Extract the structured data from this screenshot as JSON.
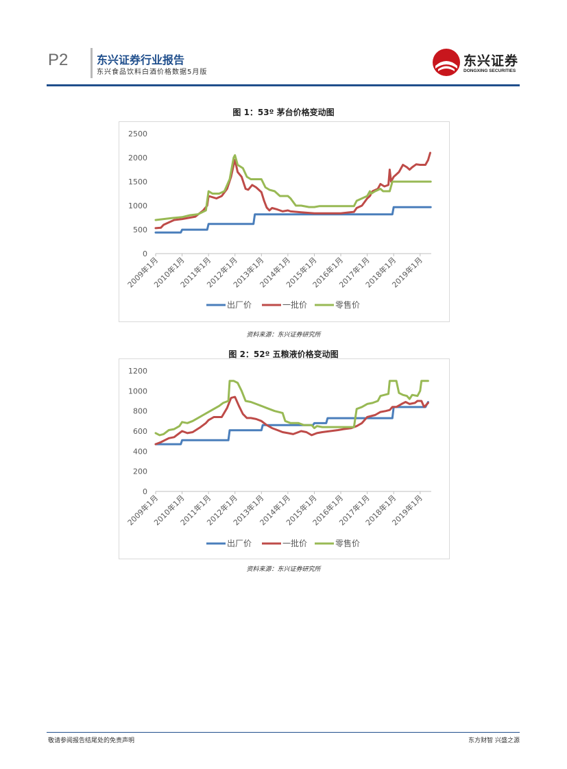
{
  "header": {
    "page_number": "P2",
    "title": "东兴证券行业报告",
    "subtitle": "东兴食品饮料白酒价格数据5月版",
    "logo_name": "东兴证券",
    "logo_en": "DONGXING SECURITIES"
  },
  "colors": {
    "brand_blue": "#1f4e8c",
    "logo_red": "#c8161d",
    "series_blue": "#4a7ebb",
    "series_red": "#be4b48",
    "series_green": "#98b954"
  },
  "figures": [
    {
      "title": "图 1：53º 茅台价格变动图",
      "source": "资料来源：东兴证券研究所"
    },
    {
      "title": "图 2：52º 五粮液价格变动图",
      "source": "资料来源：东兴证券研究所"
    }
  ],
  "chart_data": [
    {
      "type": "line",
      "title": "图 1：53º 茅台价格变动图",
      "xlabel": "",
      "ylabel": "",
      "ylim": [
        0,
        2500
      ],
      "yticks": [
        0,
        500,
        1000,
        1500,
        2000,
        2500
      ],
      "xlim": [
        2009.0,
        2019.42
      ],
      "xticks": [
        2009,
        2010,
        2011,
        2012,
        2013,
        2014,
        2015,
        2016,
        2017,
        2018,
        2019
      ],
      "xtick_labels": [
        "2009年1月",
        "2010年1月",
        "2011年1月",
        "2012年1月",
        "2013年1月",
        "2014年1月",
        "2015年1月",
        "2016年1月",
        "2017年1月",
        "2018年1月",
        "2019年1月"
      ],
      "legend_position": "bottom",
      "series": [
        {
          "name": "出厂价",
          "color": "#4a7ebb",
          "points": [
            [
              2009.0,
              439
            ],
            [
              2009.95,
              439
            ],
            [
              2010.0,
              499
            ],
            [
              2010.95,
              499
            ],
            [
              2011.0,
              619
            ],
            [
              2012.7,
              619
            ],
            [
              2012.75,
              819
            ],
            [
              2017.95,
              819
            ],
            [
              2018.0,
              969
            ],
            [
              2019.4,
              969
            ]
          ]
        },
        {
          "name": "一批价",
          "color": "#be4b48",
          "points": [
            [
              2009.0,
              530
            ],
            [
              2009.2,
              540
            ],
            [
              2009.3,
              600
            ],
            [
              2009.5,
              650
            ],
            [
              2009.7,
              700
            ],
            [
              2010.0,
              720
            ],
            [
              2010.3,
              750
            ],
            [
              2010.5,
              770
            ],
            [
              2010.8,
              900
            ],
            [
              2010.95,
              1000
            ],
            [
              2011.0,
              1200
            ],
            [
              2011.3,
              1150
            ],
            [
              2011.5,
              1200
            ],
            [
              2011.7,
              1350
            ],
            [
              2011.85,
              1600
            ],
            [
              2011.95,
              1850
            ],
            [
              2012.0,
              1950
            ],
            [
              2012.1,
              1700
            ],
            [
              2012.25,
              1600
            ],
            [
              2012.4,
              1350
            ],
            [
              2012.5,
              1330
            ],
            [
              2012.65,
              1430
            ],
            [
              2012.8,
              1380
            ],
            [
              2013.0,
              1280
            ],
            [
              2013.1,
              1100
            ],
            [
              2013.2,
              960
            ],
            [
              2013.3,
              900
            ],
            [
              2013.4,
              950
            ],
            [
              2013.6,
              920
            ],
            [
              2013.8,
              880
            ],
            [
              2014.0,
              900
            ],
            [
              2014.1,
              880
            ],
            [
              2014.5,
              860
            ],
            [
              2015.0,
              840
            ],
            [
              2015.5,
              840
            ],
            [
              2016.0,
              840
            ],
            [
              2016.5,
              870
            ],
            [
              2016.6,
              950
            ],
            [
              2016.8,
              1000
            ],
            [
              2017.0,
              1150
            ],
            [
              2017.1,
              1200
            ],
            [
              2017.2,
              1300
            ],
            [
              2017.4,
              1350
            ],
            [
              2017.5,
              1450
            ],
            [
              2017.65,
              1400
            ],
            [
              2017.8,
              1430
            ],
            [
              2017.85,
              1750
            ],
            [
              2017.9,
              1500
            ],
            [
              2018.0,
              1600
            ],
            [
              2018.1,
              1650
            ],
            [
              2018.2,
              1700
            ],
            [
              2018.35,
              1850
            ],
            [
              2018.5,
              1800
            ],
            [
              2018.6,
              1750
            ],
            [
              2018.7,
              1800
            ],
            [
              2018.85,
              1860
            ],
            [
              2019.0,
              1850
            ],
            [
              2019.2,
              1850
            ],
            [
              2019.3,
              1950
            ],
            [
              2019.38,
              2100
            ]
          ]
        },
        {
          "name": "零售价",
          "color": "#98b954",
          "points": [
            [
              2009.0,
              700
            ],
            [
              2009.3,
              720
            ],
            [
              2009.6,
              740
            ],
            [
              2010.0,
              760
            ],
            [
              2010.3,
              800
            ],
            [
              2010.6,
              820
            ],
            [
              2010.9,
              900
            ],
            [
              2011.0,
              1300
            ],
            [
              2011.15,
              1250
            ],
            [
              2011.4,
              1250
            ],
            [
              2011.6,
              1300
            ],
            [
              2011.8,
              1550
            ],
            [
              2011.95,
              2000
            ],
            [
              2012.0,
              2050
            ],
            [
              2012.1,
              1850
            ],
            [
              2012.3,
              1780
            ],
            [
              2012.45,
              1600
            ],
            [
              2012.6,
              1550
            ],
            [
              2013.0,
              1550
            ],
            [
              2013.15,
              1380
            ],
            [
              2013.3,
              1330
            ],
            [
              2013.5,
              1300
            ],
            [
              2013.7,
              1200
            ],
            [
              2014.0,
              1200
            ],
            [
              2014.1,
              1150
            ],
            [
              2014.3,
              1000
            ],
            [
              2014.5,
              1000
            ],
            [
              2014.8,
              970
            ],
            [
              2015.0,
              970
            ],
            [
              2015.2,
              990
            ],
            [
              2016.5,
              990
            ],
            [
              2016.6,
              1100
            ],
            [
              2016.8,
              1150
            ],
            [
              2017.0,
              1200
            ],
            [
              2017.1,
              1300
            ],
            [
              2017.15,
              1250
            ],
            [
              2017.3,
              1300
            ],
            [
              2017.5,
              1350
            ],
            [
              2017.6,
              1300
            ],
            [
              2017.85,
              1300
            ],
            [
              2017.95,
              1500
            ],
            [
              2019.4,
              1500
            ]
          ]
        }
      ]
    },
    {
      "type": "line",
      "title": "图 2：52º 五粮液价格变动图",
      "xlabel": "",
      "ylabel": "",
      "ylim": [
        0,
        1200
      ],
      "yticks": [
        0,
        200,
        400,
        600,
        800,
        1000,
        1200
      ],
      "xlim": [
        2009.0,
        2019.42
      ],
      "xticks": [
        2009,
        2010,
        2011,
        2012,
        2013,
        2014,
        2015,
        2016,
        2017,
        2018,
        2019
      ],
      "xtick_labels": [
        "2009年1月",
        "2010年1月",
        "2011年1月",
        "2012年1月",
        "2013年1月",
        "2014年1月",
        "2015年1月",
        "2016年1月",
        "2017年1月",
        "2018年1月",
        "2019年1月"
      ],
      "legend_position": "bottom",
      "series": [
        {
          "name": "出厂价",
          "color": "#4a7ebb",
          "points": [
            [
              2009.0,
              470
            ],
            [
              2009.95,
              470
            ],
            [
              2010.0,
              509
            ],
            [
              2011.75,
              509
            ],
            [
              2011.8,
              609
            ],
            [
              2013.0,
              609
            ],
            [
              2013.05,
              659
            ],
            [
              2014.95,
              659
            ],
            [
              2015.0,
              679
            ],
            [
              2015.45,
              679
            ],
            [
              2015.5,
              729
            ],
            [
              2017.95,
              729
            ],
            [
              2018.0,
              839
            ],
            [
              2019.2,
              839
            ],
            [
              2019.3,
              889
            ]
          ]
        },
        {
          "name": "一批价",
          "color": "#be4b48",
          "points": [
            [
              2009.0,
              470
            ],
            [
              2009.2,
              490
            ],
            [
              2009.5,
              530
            ],
            [
              2009.7,
              540
            ],
            [
              2010.0,
              600
            ],
            [
              2010.2,
              580
            ],
            [
              2010.4,
              590
            ],
            [
              2010.7,
              640
            ],
            [
              2010.9,
              680
            ],
            [
              2011.0,
              710
            ],
            [
              2011.2,
              740
            ],
            [
              2011.5,
              740
            ],
            [
              2011.7,
              830
            ],
            [
              2011.85,
              930
            ],
            [
              2012.0,
              940
            ],
            [
              2012.15,
              850
            ],
            [
              2012.3,
              770
            ],
            [
              2012.45,
              730
            ],
            [
              2012.6,
              730
            ],
            [
              2012.8,
              720
            ],
            [
              2013.0,
              700
            ],
            [
              2013.2,
              660
            ],
            [
              2013.4,
              630
            ],
            [
              2013.6,
              610
            ],
            [
              2013.8,
              590
            ],
            [
              2014.0,
              580
            ],
            [
              2014.2,
              570
            ],
            [
              2014.4,
              590
            ],
            [
              2014.5,
              600
            ],
            [
              2014.7,
              590
            ],
            [
              2014.9,
              560
            ],
            [
              2015.1,
              580
            ],
            [
              2015.3,
              590
            ],
            [
              2015.6,
              600
            ],
            [
              2015.9,
              610
            ],
            [
              2016.1,
              620
            ],
            [
              2016.4,
              630
            ],
            [
              2016.6,
              650
            ],
            [
              2016.8,
              680
            ],
            [
              2017.0,
              740
            ],
            [
              2017.3,
              760
            ],
            [
              2017.5,
              790
            ],
            [
              2017.7,
              800
            ],
            [
              2017.85,
              810
            ],
            [
              2017.95,
              840
            ],
            [
              2018.1,
              840
            ],
            [
              2018.3,
              870
            ],
            [
              2018.45,
              890
            ],
            [
              2018.6,
              870
            ],
            [
              2018.8,
              880
            ],
            [
              2018.9,
              900
            ],
            [
              2019.05,
              900
            ],
            [
              2019.15,
              840
            ],
            [
              2019.3,
              880
            ]
          ]
        },
        {
          "name": "零售价",
          "color": "#98b954",
          "points": [
            [
              2009.0,
              580
            ],
            [
              2009.15,
              560
            ],
            [
              2009.3,
              570
            ],
            [
              2009.5,
              610
            ],
            [
              2009.7,
              620
            ],
            [
              2009.9,
              650
            ],
            [
              2010.0,
              690
            ],
            [
              2010.2,
              680
            ],
            [
              2010.4,
              700
            ],
            [
              2010.6,
              730
            ],
            [
              2010.8,
              760
            ],
            [
              2011.0,
              790
            ],
            [
              2011.2,
              820
            ],
            [
              2011.4,
              850
            ],
            [
              2011.55,
              880
            ],
            [
              2011.75,
              900
            ],
            [
              2011.8,
              1100
            ],
            [
              2011.95,
              1100
            ],
            [
              2012.1,
              1080
            ],
            [
              2012.25,
              1000
            ],
            [
              2012.4,
              900
            ],
            [
              2012.6,
              890
            ],
            [
              2012.8,
              870
            ],
            [
              2013.0,
              850
            ],
            [
              2013.2,
              830
            ],
            [
              2013.5,
              800
            ],
            [
              2013.8,
              780
            ],
            [
              2013.9,
              700
            ],
            [
              2014.1,
              680
            ],
            [
              2014.4,
              680
            ],
            [
              2014.6,
              660
            ],
            [
              2014.9,
              660
            ],
            [
              2015.0,
              630
            ],
            [
              2015.1,
              650
            ],
            [
              2015.3,
              640
            ],
            [
              2016.5,
              640
            ],
            [
              2016.6,
              820
            ],
            [
              2016.8,
              840
            ],
            [
              2017.0,
              870
            ],
            [
              2017.2,
              880
            ],
            [
              2017.4,
              900
            ],
            [
              2017.5,
              950
            ],
            [
              2017.8,
              970
            ],
            [
              2017.85,
              1100
            ],
            [
              2018.1,
              1100
            ],
            [
              2018.2,
              980
            ],
            [
              2018.35,
              960
            ],
            [
              2018.5,
              950
            ],
            [
              2018.6,
              920
            ],
            [
              2018.7,
              960
            ],
            [
              2018.9,
              950
            ],
            [
              2019.0,
              1000
            ],
            [
              2019.05,
              1100
            ],
            [
              2019.3,
              1100
            ]
          ]
        }
      ]
    }
  ],
  "footer": {
    "disclaimer": "敬请参阅报告结尾处的免责声明",
    "slogan": "东方财智 兴盛之源"
  }
}
